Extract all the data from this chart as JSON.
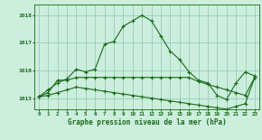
{
  "title": "Graphe pression niveau de la mer (hPa)",
  "background_color": "#cceedd",
  "grid_color": "#99ccbb",
  "line_color": "#1a6b1a",
  "x_labels": [
    "0",
    "1",
    "2",
    "3",
    "4",
    "5",
    "6",
    "7",
    "8",
    "9",
    "10",
    "11",
    "12",
    "13",
    "14",
    "15",
    "16",
    "17",
    "18",
    "19",
    "20",
    "21",
    "22",
    "23"
  ],
  "ylim": [
    1014.6,
    1018.4
  ],
  "yticks": [
    1015,
    1016,
    1017,
    1018
  ],
  "series1_y": [
    1015.05,
    1015.3,
    1015.55,
    1015.7,
    1016.05,
    1015.95,
    1016.05,
    1016.95,
    1017.05,
    1017.6,
    1017.8,
    1018.0,
    1017.8,
    1017.25,
    1016.7,
    1016.4,
    1015.95,
    1015.65,
    1015.55,
    1015.1,
    1014.95,
    1015.55,
    1015.95,
    1015.8
  ],
  "series2_y": [
    1015.05,
    1015.2,
    1015.65,
    1015.65,
    1015.75,
    1015.75,
    1015.75,
    1015.75,
    1015.75,
    1015.75,
    1015.75,
    1015.75,
    1015.75,
    1015.75,
    1015.75,
    1015.75,
    1015.75,
    1015.6,
    1015.5,
    1015.4,
    1015.3,
    1015.2,
    1015.1,
    1015.75
  ],
  "series3_y": [
    1015.05,
    1015.1,
    1015.2,
    1015.3,
    1015.4,
    1015.35,
    1015.3,
    1015.25,
    1015.2,
    1015.15,
    1015.1,
    1015.05,
    1015.0,
    1014.95,
    1014.9,
    1014.85,
    1014.8,
    1014.75,
    1014.7,
    1014.65,
    1014.6,
    1014.7,
    1014.8,
    1015.75
  ]
}
